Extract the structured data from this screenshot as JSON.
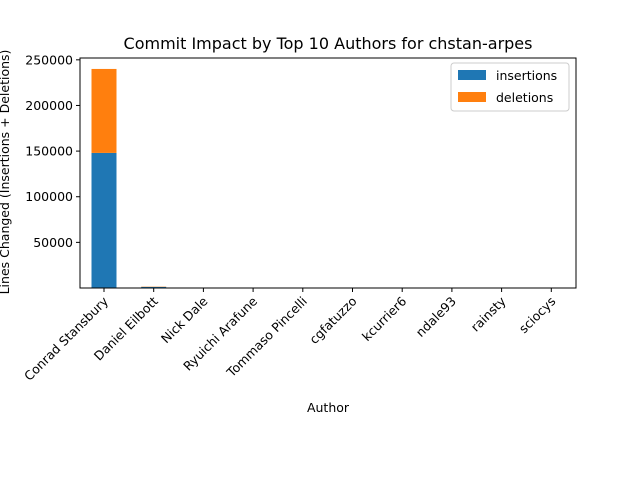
{
  "chart_data": {
    "type": "bar",
    "stacked": true,
    "title": "Commit Impact by Top 10 Authors for chstan-arpes",
    "xlabel": "Author",
    "ylabel": "Lines Changed (Insertions + Deletions)",
    "categories": [
      "Conrad Stansbury",
      "Daniel Eilbott",
      "Nick Dale",
      "Ryuichi Arafune",
      "Tommaso Pincelli",
      "cgfatuzzo",
      "kcurrier6",
      "ndale93",
      "rainsty",
      "sciocys"
    ],
    "series": [
      {
        "name": "insertions",
        "color": "#1f77b4",
        "values": [
          148000,
          1200,
          300,
          200,
          150,
          100,
          80,
          60,
          40,
          30
        ]
      },
      {
        "name": "deletions",
        "color": "#ff7f0e",
        "values": [
          92000,
          300,
          100,
          50,
          40,
          30,
          20,
          10,
          10,
          5
        ]
      }
    ],
    "ylim": [
      0,
      252000
    ],
    "yticks": [
      50000,
      100000,
      150000,
      200000,
      250000
    ],
    "ytick_labels": [
      "50000",
      "100000",
      "150000",
      "200000",
      "250000"
    ],
    "grid": false,
    "legend_position": "top-right"
  }
}
